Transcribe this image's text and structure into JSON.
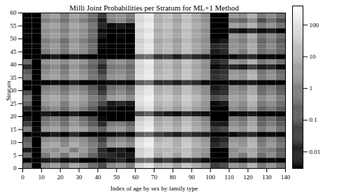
{
  "chart_data": {
    "type": "heatmap",
    "title": "Milli Joint Probabilities per Stratum for ML+1 Method",
    "x_label": "Index of age by sex by family type",
    "y_label": "Stratum",
    "xlim": [
      0,
      140
    ],
    "xticks": [
      0,
      10,
      20,
      30,
      40,
      50,
      60,
      70,
      80,
      90,
      100,
      110,
      120,
      130,
      140
    ],
    "ylim": [
      0,
      60
    ],
    "yticks": [
      0,
      5,
      10,
      15,
      20,
      25,
      30,
      35,
      40,
      45,
      50,
      55,
      60
    ],
    "x_bins": [
      0,
      5,
      10,
      15,
      20,
      25,
      30,
      35,
      40,
      45,
      50,
      55,
      60,
      65,
      70,
      75,
      80,
      85,
      90,
      95,
      100,
      105,
      110,
      115,
      120,
      125,
      130,
      135,
      140
    ],
    "y_bins": [
      0,
      2,
      4,
      6,
      8,
      10,
      12,
      14,
      16,
      18,
      20,
      22,
      24,
      26,
      28,
      30,
      32,
      34,
      36,
      38,
      40,
      42,
      44,
      46,
      48,
      50,
      52,
      54,
      56,
      58,
      60
    ],
    "cells": [
      [
        0.5,
        0.003,
        2,
        5,
        1,
        8,
        3,
        0.5,
        0.1,
        2,
        4,
        1,
        60,
        120,
        15,
        25,
        6,
        30,
        10,
        3,
        0.05,
        0.1,
        4,
        2,
        12,
        0.8,
        3,
        0.5
      ],
      [
        0.003,
        0.003,
        0.01,
        0.02,
        0.005,
        0.01,
        0.003,
        0.003,
        0.003,
        0.01,
        0.02,
        0.005,
        0.3,
        0.5,
        0.02,
        0.05,
        0.01,
        0.03,
        0.02,
        0.005,
        0.003,
        0.003,
        0.01,
        0.005,
        0.02,
        0.003,
        0.005,
        0.003
      ],
      [
        0.3,
        0.003,
        1,
        4,
        0.8,
        6,
        2,
        0.3,
        0.03,
        0.02,
        0.01,
        0.01,
        50,
        100,
        8,
        20,
        5,
        25,
        6,
        2,
        0.003,
        0.003,
        3,
        1,
        8,
        0.5,
        2,
        0.3
      ],
      [
        0.01,
        0.003,
        3,
        2,
        5,
        1,
        4,
        0.8,
        0.02,
        0.005,
        0.01,
        0.003,
        40,
        90,
        12,
        15,
        10,
        20,
        5,
        3,
        0.003,
        0.003,
        2,
        4,
        6,
        1,
        1,
        0.2
      ],
      [
        0.5,
        0.003,
        5,
        8,
        2,
        10,
        3,
        1,
        0.2,
        3,
        5,
        2,
        100,
        200,
        20,
        30,
        10,
        40,
        12,
        5,
        0.02,
        0.05,
        6,
        3,
        15,
        1,
        4,
        0.8
      ],
      [
        0.2,
        0.003,
        2,
        3,
        1,
        4,
        2,
        0.5,
        0.05,
        1,
        2,
        0.8,
        70,
        150,
        10,
        20,
        8,
        25,
        8,
        3,
        0.01,
        0.02,
        3,
        2,
        10,
        0.6,
        2,
        0.4
      ],
      [
        0.003,
        0.003,
        0.005,
        0.01,
        0.003,
        0.02,
        0.005,
        0.003,
        0.003,
        0.005,
        0.01,
        0.003,
        0.2,
        0.4,
        0.05,
        0.03,
        0.01,
        0.05,
        0.02,
        0.01,
        0.003,
        0.003,
        0.005,
        0.01,
        0.02,
        0.003,
        0.005,
        0.003
      ],
      [
        1,
        0.005,
        4,
        6,
        2,
        8,
        5,
        1,
        0.3,
        3,
        4,
        1,
        90,
        180,
        15,
        25,
        10,
        35,
        10,
        4,
        0.05,
        0.1,
        5,
        3,
        12,
        1,
        3,
        0.6
      ],
      [
        0.05,
        0.003,
        1,
        2,
        0.5,
        3,
        1,
        0.2,
        0.02,
        0.8,
        1,
        0.3,
        60,
        120,
        8,
        15,
        5,
        20,
        6,
        2,
        0.01,
        0.01,
        2,
        1,
        6,
        0.3,
        1,
        0.2
      ],
      [
        0.01,
        0.003,
        0.5,
        1,
        0.3,
        2,
        0.5,
        0.1,
        0.005,
        0.003,
        0.003,
        0.003,
        30,
        80,
        5,
        10,
        3,
        12,
        4,
        1,
        0.003,
        0.003,
        1,
        0.5,
        4,
        0.2,
        0.5,
        0.1
      ],
      [
        0.003,
        0.003,
        0.01,
        0.005,
        0.003,
        0.01,
        0.003,
        0.003,
        0.003,
        0.003,
        0.003,
        0.003,
        0.1,
        0.3,
        0.02,
        0.01,
        0.005,
        0.02,
        0.01,
        0.005,
        0.003,
        0.003,
        0.003,
        0.005,
        0.01,
        0.003,
        0.003,
        0.003
      ],
      [
        0.02,
        0.003,
        0.8,
        2,
        0.5,
        3,
        1,
        0.2,
        0.01,
        0.005,
        0.003,
        0.003,
        40,
        90,
        6,
        12,
        4,
        15,
        5,
        2,
        0.003,
        0.003,
        2,
        1,
        5,
        0.3,
        0.8,
        0.2
      ],
      [
        0.3,
        0.003,
        3,
        5,
        1,
        6,
        3,
        0.6,
        0.1,
        0.01,
        0.02,
        0.01,
        80,
        160,
        12,
        20,
        8,
        28,
        9,
        3,
        0.005,
        0.01,
        4,
        2,
        10,
        0.8,
        2,
        0.5
      ],
      [
        0.8,
        0.005,
        5,
        8,
        3,
        10,
        5,
        1,
        0.3,
        4,
        6,
        2,
        100,
        220,
        20,
        35,
        12,
        40,
        15,
        5,
        0.1,
        0.2,
        6,
        4,
        18,
        2,
        5,
        1
      ],
      [
        0.1,
        0.003,
        2,
        3,
        1,
        4,
        2,
        0.4,
        0.05,
        1,
        2,
        0.6,
        60,
        130,
        10,
        18,
        6,
        22,
        7,
        2,
        0.02,
        0.03,
        3,
        2,
        8,
        0.5,
        1.5,
        0.3
      ],
      [
        0.003,
        0.003,
        1,
        2,
        0.5,
        2,
        1,
        0.2,
        0.02,
        0.5,
        1,
        0.3,
        50,
        110,
        8,
        15,
        5,
        18,
        5,
        2,
        0.01,
        0.02,
        2,
        1,
        6,
        0.4,
        1,
        0.2
      ],
      [
        0.003,
        0.003,
        0.003,
        0.005,
        0.003,
        0.01,
        0.003,
        0.003,
        0.003,
        0.005,
        0.005,
        0.003,
        0.2,
        0.5,
        0.02,
        0.03,
        0.01,
        0.04,
        0.02,
        0.005,
        0.003,
        0.003,
        0.005,
        0.005,
        0.01,
        0.003,
        0.003,
        0.003
      ],
      [
        0.5,
        0.003,
        4,
        6,
        2,
        7,
        4,
        0.8,
        0.2,
        3,
        4,
        1,
        90,
        170,
        15,
        25,
        9,
        30,
        10,
        4,
        0.03,
        0.05,
        5,
        3,
        14,
        1,
        3,
        0.6
      ],
      [
        0.2,
        0.003,
        2,
        4,
        1,
        5,
        2,
        0.5,
        0.05,
        1.5,
        2,
        0.7,
        70,
        140,
        10,
        20,
        7,
        25,
        8,
        3,
        0.02,
        0.03,
        3,
        2,
        9,
        0.6,
        2,
        0.4
      ],
      [
        0.02,
        0.003,
        1,
        2,
        0.6,
        3,
        1,
        0.3,
        0.02,
        0.8,
        1,
        0.4,
        60,
        120,
        8,
        15,
        5,
        20,
        6,
        2,
        0.005,
        0.01,
        0.02,
        0.01,
        0.05,
        0.01,
        0.02,
        0.005
      ],
      [
        0.4,
        0.003,
        3,
        5,
        2,
        6,
        3,
        0.6,
        0.1,
        2,
        3,
        1,
        80,
        160,
        12,
        22,
        8,
        28,
        9,
        3,
        0.02,
        0.04,
        4,
        2,
        11,
        0.8,
        2,
        0.5
      ],
      [
        0.003,
        0.003,
        0.005,
        0.01,
        0.003,
        0.01,
        0.005,
        0.003,
        0.003,
        0.003,
        0.003,
        0.003,
        0.3,
        0.6,
        0.03,
        0.05,
        0.01,
        0.05,
        0.02,
        0.01,
        0.003,
        0.003,
        0.005,
        0.01,
        0.02,
        0.003,
        0.005,
        0.003
      ],
      [
        0.003,
        0.003,
        1,
        3,
        0.8,
        4,
        2,
        0.4,
        0.003,
        0.003,
        0.003,
        0.003,
        50,
        100,
        8,
        15,
        5,
        20,
        6,
        2,
        0.01,
        0.02,
        3,
        1,
        7,
        0.5,
        1,
        0.3
      ],
      [
        0.003,
        0.003,
        2,
        4,
        1,
        5,
        2,
        0.5,
        0.005,
        0.003,
        0.003,
        0.003,
        60,
        130,
        10,
        18,
        6,
        22,
        7,
        3,
        0.02,
        0.03,
        3,
        2,
        9,
        0.6,
        2,
        0.4
      ],
      [
        0.003,
        0.003,
        1,
        2,
        0.5,
        3,
        1,
        0.3,
        0.003,
        0.003,
        0.003,
        0.003,
        40,
        90,
        6,
        12,
        4,
        15,
        5,
        2,
        0.005,
        0.01,
        2,
        1,
        5,
        0.3,
        1,
        0.2
      ],
      [
        0.005,
        0.003,
        3,
        5,
        2,
        6,
        3,
        0.6,
        0.01,
        0.003,
        0.005,
        0.003,
        70,
        150,
        12,
        20,
        7,
        25,
        8,
        3,
        0.003,
        0.003,
        4,
        2,
        10,
        0.8,
        2,
        0.5
      ],
      [
        0.003,
        0.003,
        2,
        3,
        1,
        4,
        2,
        0.4,
        0.005,
        0.003,
        0.003,
        0.003,
        50,
        110,
        8,
        15,
        5,
        18,
        6,
        2,
        0.003,
        0.003,
        0.01,
        0.005,
        0.02,
        0.005,
        0.01,
        0.003
      ],
      [
        0.003,
        0.003,
        4,
        6,
        2,
        7,
        4,
        0.8,
        0.02,
        0.005,
        0.01,
        0.005,
        90,
        180,
        15,
        25,
        9,
        30,
        10,
        4,
        0.003,
        0.003,
        5,
        3,
        12,
        1,
        3,
        0.6
      ],
      [
        0.003,
        0.003,
        1,
        2,
        0.6,
        3,
        1,
        0.3,
        0.01,
        1,
        2,
        0.5,
        60,
        120,
        8,
        15,
        5,
        20,
        6,
        2,
        0.003,
        0.003,
        0.5,
        0.3,
        2,
        0.1,
        0.5,
        0.1
      ],
      [
        0.003,
        0.003,
        3,
        5,
        1,
        6,
        3,
        0.6,
        0.05,
        2,
        3,
        1,
        80,
        160,
        12,
        22,
        8,
        28,
        9,
        3,
        0.003,
        0.003,
        4,
        2,
        10,
        0.8,
        2,
        0.5
      ]
    ],
    "colorbar": {
      "range": [
        0.003,
        400
      ],
      "ticks": [
        0.01,
        0.1,
        1,
        10,
        100
      ],
      "log": true
    }
  }
}
